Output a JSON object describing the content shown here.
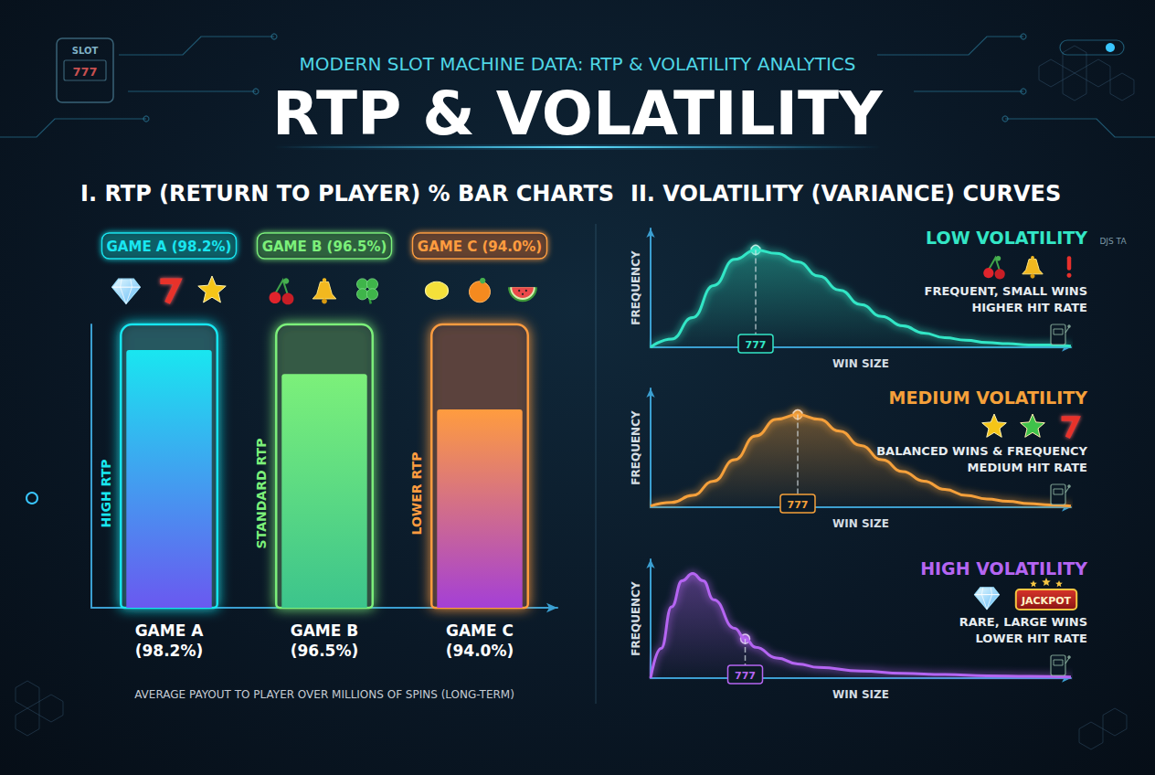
{
  "header": {
    "kicker": "MODERN SLOT MACHINE DATA: RTP & VOLATILITY ANALYTICS",
    "title": "RTP & VOLATILITY",
    "volatility_heading": "II. VOLATILITY (VARIANCE) CURVES",
    "slot_icon": "SLOT",
    "reel_icon": "777",
    "corner_text": "DJS TA"
  },
  "chart_data": [
    {
      "type": "bar",
      "title": "I. RTP (RETURN TO PLAYER) % BAR CHARTS",
      "categories": [
        "GAME A (98.2%)",
        "GAME B (96.5%)",
        "GAME C (94.0%)"
      ],
      "values": [
        98.2,
        96.5,
        94.0
      ],
      "colors": [
        "#19e6f0",
        "#7cf07a",
        "#ff9c3f"
      ],
      "tier_labels": [
        "HIGH RTP",
        "STANDARD RTP",
        "LOWER RTP"
      ],
      "footnote": "AVERAGE PAYOUT TO PLAYER OVER MILLIONS OF SPINS (LONG-TERM)",
      "ylim": [
        80,
        100
      ],
      "tick_labels": "x"
    },
    {
      "type": "line",
      "title": "LOW VOLATILITY",
      "notes": [
        "FREQUENT, SMALL WINS",
        "HIGHER HIT RATE"
      ],
      "x": [
        0,
        0.5,
        1,
        1.5,
        2,
        2.5,
        3,
        3.5,
        4,
        4.5,
        5,
        5.5,
        6,
        6.5,
        7,
        7.5,
        8,
        8.5,
        9,
        9.5,
        10
      ],
      "values": [
        0,
        0.07,
        0.25,
        0.52,
        0.74,
        0.82,
        0.79,
        0.72,
        0.6,
        0.48,
        0.36,
        0.26,
        0.18,
        0.12,
        0.08,
        0.06,
        0.04,
        0.03,
        0.02,
        0.02,
        0.01
      ],
      "marked_x": 2.5,
      "color": "#33e6c6",
      "x_label": "WIN SIZE",
      "y_label": "FREQUENCY",
      "xlim": [
        0,
        10
      ],
      "ylim": [
        0,
        1
      ],
      "tick_labels": false
    },
    {
      "type": "line",
      "title": "MEDIUM VOLATILITY",
      "notes": [
        "BALANCED WINS & FREQUENCY",
        "MEDIUM HIT RATE"
      ],
      "x": [
        0,
        0.5,
        1,
        1.5,
        2,
        2.5,
        3,
        3.5,
        4,
        4.5,
        5,
        5.5,
        6,
        6.5,
        7,
        7.5,
        8,
        8.5,
        9,
        9.5,
        10
      ],
      "values": [
        0.01,
        0.04,
        0.1,
        0.22,
        0.4,
        0.6,
        0.74,
        0.78,
        0.74,
        0.64,
        0.52,
        0.4,
        0.3,
        0.22,
        0.15,
        0.1,
        0.07,
        0.05,
        0.03,
        0.02,
        0.01
      ],
      "marked_x": 3.5,
      "color": "#f5a03a",
      "x_label": "WIN SIZE",
      "y_label": "FREQUENCY",
      "xlim": [
        0,
        10
      ],
      "ylim": [
        0,
        1
      ],
      "tick_labels": false
    },
    {
      "type": "line",
      "title": "HIGH VOLATILITY",
      "notes": [
        "RARE, LARGE WINS",
        "LOWER HIT RATE"
      ],
      "badge": "JACKPOT",
      "x": [
        0,
        0.25,
        0.5,
        0.75,
        1,
        1.25,
        1.5,
        2,
        2.25,
        2.5,
        3,
        3.5,
        4,
        5,
        6,
        7,
        8,
        9,
        10
      ],
      "values": [
        0,
        0.25,
        0.6,
        0.82,
        0.88,
        0.82,
        0.66,
        0.42,
        0.33,
        0.26,
        0.17,
        0.12,
        0.09,
        0.06,
        0.04,
        0.03,
        0.02,
        0.015,
        0.01
      ],
      "marked_x": 2.25,
      "color": "#b565f2",
      "x_label": "WIN SIZE",
      "y_label": "FREQUENCY",
      "xlim": [
        0,
        10
      ],
      "ylim": [
        0,
        1
      ],
      "tick_labels": false
    }
  ]
}
